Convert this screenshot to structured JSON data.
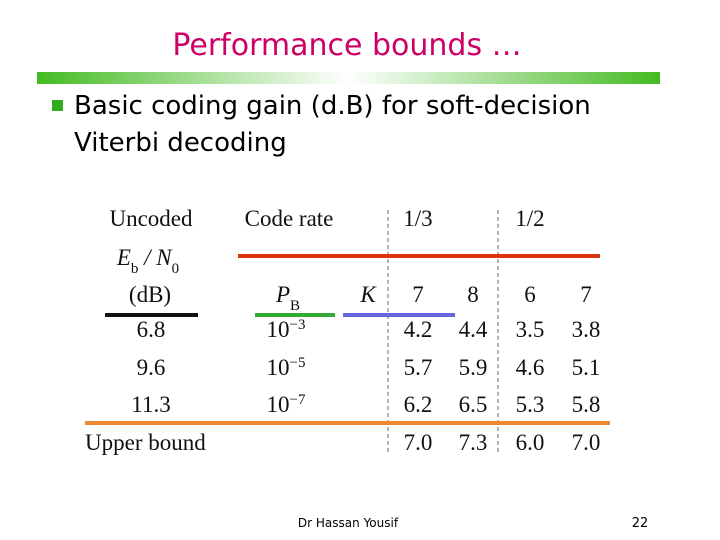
{
  "header": {
    "title": "Performance bounds …"
  },
  "bullet": "Basic coding gain (d.B) for soft-decision Viterbi decoding",
  "table": {
    "header": {
      "uncoded": "Uncoded",
      "ebno": {
        "e": "E",
        "e_sub": "b",
        "slash": " / N",
        "n_sub": "0"
      },
      "db": "(dB)",
      "code_rate": "Code rate",
      "rate_13": "1/3",
      "rate_12": "1/2",
      "pb": {
        "p": "P",
        "p_sub": "B"
      },
      "k": "K",
      "k_values": [
        "7",
        "8",
        "6",
        "7"
      ]
    },
    "rows": [
      {
        "snr": "6.8",
        "pb": {
          "base": "10",
          "exp": "−3"
        },
        "gains": [
          "4.2",
          "4.4",
          "3.5",
          "3.8"
        ]
      },
      {
        "snr": "9.6",
        "pb": {
          "base": "10",
          "exp": "−5"
        },
        "gains": [
          "5.7",
          "5.9",
          "4.6",
          "5.1"
        ]
      },
      {
        "snr": "11.3",
        "pb": {
          "base": "10",
          "exp": "−7"
        },
        "gains": [
          "6.2",
          "6.5",
          "5.3",
          "5.8"
        ]
      }
    ],
    "upper_bound": {
      "label": "Upper  bound",
      "gains": [
        "7.0",
        "7.3",
        "6.0",
        "7.0"
      ]
    }
  },
  "footer": {
    "author": "Dr Hassan Yousif",
    "page": "22"
  }
}
